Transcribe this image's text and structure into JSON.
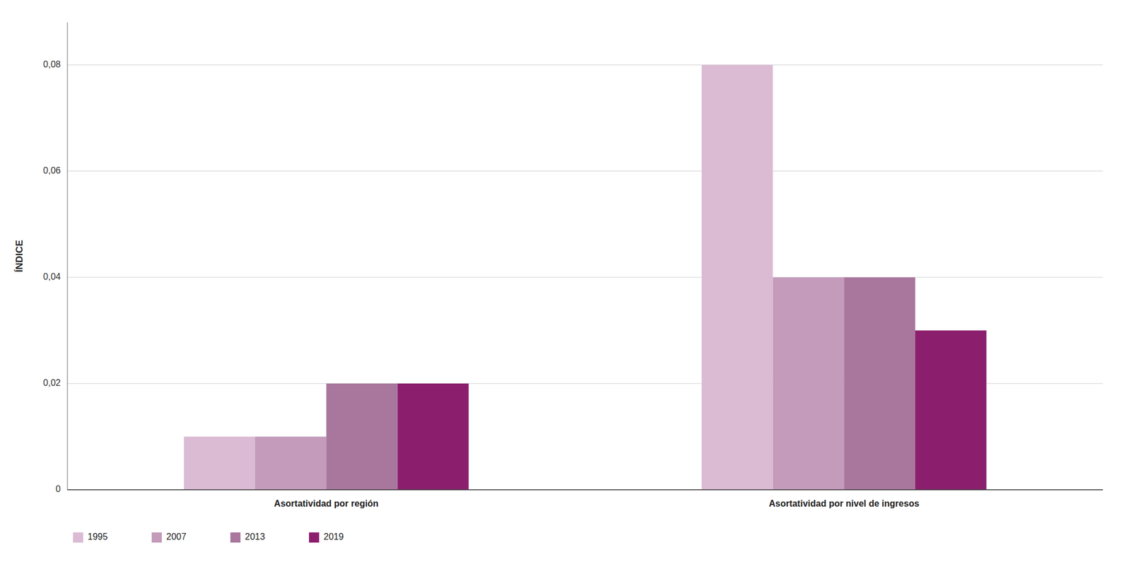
{
  "chart_data": {
    "type": "bar",
    "categories": [
      "Asortatividad por región",
      "Asortatividad por nivel de ingresos"
    ],
    "series": [
      {
        "name": "1995",
        "color": "#DBBAD4",
        "values": [
          0.01,
          0.08
        ]
      },
      {
        "name": "2007",
        "color": "#C49BBB",
        "values": [
          0.01,
          0.04
        ]
      },
      {
        "name": "2013",
        "color": "#A9779E",
        "values": [
          0.02,
          0.04
        ]
      },
      {
        "name": "2019",
        "color": "#8B1F6E",
        "values": [
          0.02,
          0.03
        ]
      }
    ],
    "ylabel": "ÍNDICE",
    "ylim": [
      0,
      0.088
    ],
    "yticks": [
      0,
      {
        "value": 0.02,
        "label": "0,02"
      },
      {
        "value": 0.04,
        "label": "0,04"
      },
      {
        "value": 0.06,
        "label": "0,06"
      },
      {
        "value": 0.08,
        "label": "0,08"
      }
    ],
    "grid": true,
    "legend": "bottom"
  }
}
